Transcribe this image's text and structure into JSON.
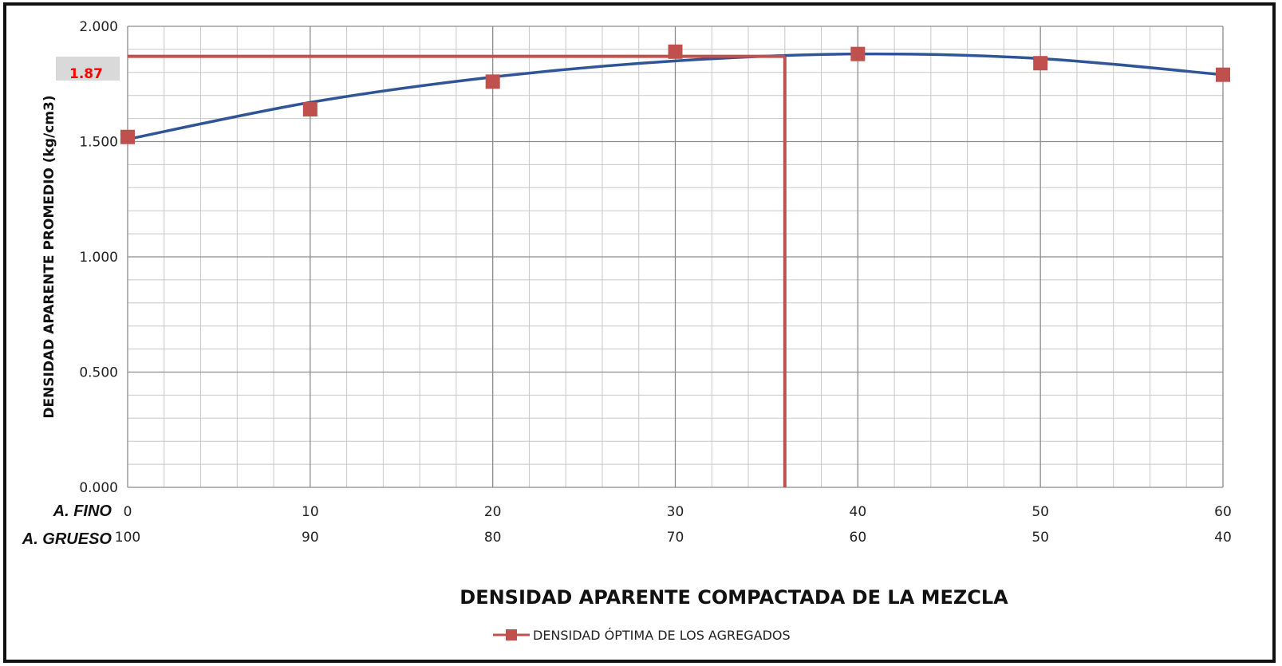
{
  "chart_data": {
    "type": "scatter",
    "title": "DENSIDAD APARENTE COMPACTADA DE LA MEZCLA",
    "ylabel": "DENSIDAD APARENTE PROMEDIO (kg/cm3)",
    "ylim": [
      0,
      2
    ],
    "xlim": [
      0,
      60
    ],
    "y_ticks": [
      "0.000",
      "0.500",
      "1.000",
      "1.500",
      "2.000"
    ],
    "x_row_labels": [
      "A. FINO",
      "A. GRUESO"
    ],
    "x_ticks_fino": [
      "0",
      "10",
      "20",
      "30",
      "40",
      "50",
      "60"
    ],
    "x_ticks_grueso": [
      "100",
      "90",
      "80",
      "70",
      "60",
      "50",
      "40"
    ],
    "grid": true,
    "legend_position": "bottom",
    "series": [
      {
        "name": "DENSIDAD ÓPTIMA DE LOS AGREGADOS",
        "color": "#c0504d",
        "marker": "square",
        "x": [
          0,
          10,
          20,
          30,
          40,
          50,
          60
        ],
        "y": [
          1.52,
          1.64,
          1.76,
          1.89,
          1.88,
          1.84,
          1.79
        ]
      }
    ],
    "trendline": {
      "color": "#2f5597",
      "x": [
        0,
        10,
        20,
        30,
        40,
        50,
        60
      ],
      "y": [
        1.51,
        1.67,
        1.78,
        1.85,
        1.88,
        1.86,
        1.79
      ]
    },
    "optimum": {
      "label": "1.87",
      "x": 36,
      "y": 1.87,
      "color": "#c0504d",
      "label_color": "#ff0000"
    }
  }
}
